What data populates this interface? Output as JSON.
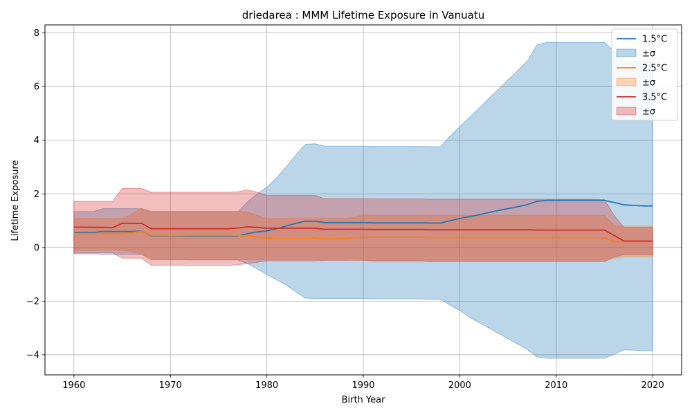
{
  "chart_data": {
    "type": "line",
    "title": "driedarea : MMM Lifetime Exposure in Vanuatu",
    "xlabel": "Birth Year",
    "ylabel": "Lifetime Exposure",
    "xlim": [
      1957,
      2023
    ],
    "ylim": [
      -4.75,
      8.3
    ],
    "xticks": [
      1960,
      1970,
      1980,
      1990,
      2000,
      2010,
      2020
    ],
    "yticks": [
      -4,
      -2,
      0,
      2,
      4,
      6,
      8
    ],
    "grid": true,
    "legend_position": "top-right",
    "x": [
      1960,
      1961,
      1962,
      1963,
      1964,
      1965,
      1966,
      1967,
      1968,
      1969,
      1970,
      1971,
      1972,
      1973,
      1974,
      1975,
      1976,
      1977,
      1978,
      1979,
      1980,
      1981,
      1982,
      1983,
      1984,
      1985,
      1986,
      1987,
      1988,
      1989,
      1990,
      1991,
      1992,
      1993,
      1994,
      1995,
      1996,
      1997,
      1998,
      1999,
      2000,
      2001,
      2002,
      2003,
      2004,
      2005,
      2006,
      2007,
      2008,
      2009,
      2010,
      2011,
      2012,
      2013,
      2014,
      2015,
      2016,
      2017,
      2018,
      2019,
      2020
    ],
    "series": [
      {
        "name": "1.5°C",
        "band_label": "±σ",
        "color": "#1f77b4",
        "band_color": "#1f77b4",
        "mean": [
          0.55,
          0.56,
          0.56,
          0.6,
          0.6,
          0.6,
          0.6,
          0.61,
          0.44,
          0.44,
          0.44,
          0.44,
          0.43,
          0.43,
          0.43,
          0.43,
          0.43,
          0.43,
          0.52,
          0.58,
          0.62,
          0.7,
          0.8,
          0.9,
          0.98,
          0.98,
          0.93,
          0.93,
          0.93,
          0.93,
          0.93,
          0.92,
          0.92,
          0.92,
          0.92,
          0.92,
          0.92,
          0.91,
          0.91,
          1.0,
          1.08,
          1.15,
          1.22,
          1.3,
          1.38,
          1.45,
          1.52,
          1.6,
          1.72,
          1.76,
          1.76,
          1.76,
          1.76,
          1.76,
          1.76,
          1.76,
          1.68,
          1.59,
          1.57,
          1.55,
          1.55
        ],
        "upper": [
          1.34,
          1.34,
          1.34,
          1.45,
          1.45,
          1.45,
          1.45,
          1.45,
          1.33,
          1.33,
          1.33,
          1.33,
          1.33,
          1.33,
          1.33,
          1.33,
          1.33,
          1.33,
          1.7,
          2.0,
          2.25,
          2.6,
          3.0,
          3.45,
          3.85,
          3.87,
          3.78,
          3.78,
          3.78,
          3.78,
          3.78,
          3.77,
          3.77,
          3.77,
          3.77,
          3.77,
          3.77,
          3.76,
          3.76,
          4.15,
          4.5,
          4.85,
          5.2,
          5.55,
          5.9,
          6.25,
          6.6,
          6.95,
          7.55,
          7.65,
          7.65,
          7.65,
          7.65,
          7.65,
          7.65,
          7.65,
          7.32,
          6.95,
          6.95,
          6.95,
          6.95
        ],
        "lower": [
          -0.24,
          -0.24,
          -0.24,
          -0.25,
          -0.25,
          -0.25,
          -0.25,
          -0.25,
          -0.45,
          -0.45,
          -0.45,
          -0.45,
          -0.46,
          -0.46,
          -0.46,
          -0.46,
          -0.46,
          -0.46,
          -0.6,
          -0.8,
          -1.01,
          -1.2,
          -1.4,
          -1.65,
          -1.89,
          -1.9,
          -1.9,
          -1.9,
          -1.9,
          -1.9,
          -1.9,
          -1.92,
          -1.92,
          -1.92,
          -1.92,
          -1.92,
          -1.92,
          -1.93,
          -1.94,
          -2.15,
          -2.35,
          -2.6,
          -2.8,
          -3.0,
          -3.2,
          -3.4,
          -3.6,
          -3.8,
          -4.08,
          -4.13,
          -4.13,
          -4.13,
          -4.13,
          -4.13,
          -4.13,
          -4.13,
          -3.98,
          -3.82,
          -3.83,
          -3.85,
          -3.85
        ]
      },
      {
        "name": "2.5°C",
        "band_label": "±σ",
        "color": "#ff7f0e",
        "band_color": "#ff7f0e",
        "mean": [
          0.52,
          0.52,
          0.52,
          0.52,
          0.52,
          0.52,
          0.55,
          0.6,
          0.45,
          0.45,
          0.45,
          0.45,
          0.45,
          0.45,
          0.45,
          0.45,
          0.45,
          0.45,
          0.42,
          0.38,
          0.35,
          0.35,
          0.35,
          0.35,
          0.35,
          0.35,
          0.32,
          0.32,
          0.33,
          0.36,
          0.38,
          0.38,
          0.38,
          0.38,
          0.38,
          0.38,
          0.38,
          0.37,
          0.37,
          0.37,
          0.37,
          0.37,
          0.37,
          0.37,
          0.37,
          0.37,
          0.37,
          0.37,
          0.37,
          0.37,
          0.37,
          0.37,
          0.37,
          0.37,
          0.37,
          0.37,
          0.22,
          0.22,
          0.22,
          0.22,
          0.22
        ],
        "upper": [
          1.08,
          1.08,
          1.08,
          1.08,
          1.08,
          1.08,
          1.25,
          1.46,
          1.35,
          1.35,
          1.35,
          1.35,
          1.35,
          1.35,
          1.35,
          1.35,
          1.35,
          1.35,
          1.33,
          1.2,
          1.08,
          1.08,
          1.08,
          1.08,
          1.08,
          1.08,
          1.08,
          1.08,
          1.08,
          1.12,
          1.22,
          1.2,
          1.2,
          1.2,
          1.2,
          1.2,
          1.2,
          1.2,
          1.2,
          1.2,
          1.2,
          1.2,
          1.2,
          1.2,
          1.2,
          1.2,
          1.2,
          1.2,
          1.2,
          1.2,
          1.2,
          1.2,
          1.2,
          1.2,
          1.2,
          1.2,
          0.8,
          0.8,
          0.8,
          0.8,
          0.8
        ],
        "lower": [
          -0.1,
          -0.1,
          -0.1,
          -0.1,
          -0.1,
          -0.1,
          -0.15,
          -0.25,
          -0.45,
          -0.45,
          -0.45,
          -0.45,
          -0.45,
          -0.45,
          -0.45,
          -0.45,
          -0.45,
          -0.45,
          -0.45,
          -0.45,
          -0.45,
          -0.45,
          -0.45,
          -0.45,
          -0.45,
          -0.45,
          -0.45,
          -0.45,
          -0.45,
          -0.4,
          -0.45,
          -0.5,
          -0.5,
          -0.5,
          -0.5,
          -0.5,
          -0.5,
          -0.52,
          -0.52,
          -0.52,
          -0.52,
          -0.52,
          -0.52,
          -0.52,
          -0.52,
          -0.52,
          -0.52,
          -0.52,
          -0.52,
          -0.52,
          -0.52,
          -0.52,
          -0.52,
          -0.52,
          -0.52,
          -0.52,
          -0.4,
          -0.35,
          -0.35,
          -0.35,
          -0.35
        ]
      },
      {
        "name": "3.5°C",
        "band_label": "±σ",
        "color": "#d62728",
        "band_color": "#d62728",
        "mean": [
          0.76,
          0.76,
          0.75,
          0.75,
          0.74,
          0.9,
          0.9,
          0.9,
          0.7,
          0.7,
          0.7,
          0.7,
          0.7,
          0.7,
          0.7,
          0.7,
          0.7,
          0.73,
          0.77,
          0.75,
          0.72,
          0.72,
          0.72,
          0.72,
          0.72,
          0.72,
          0.68,
          0.68,
          0.68,
          0.68,
          0.68,
          0.67,
          0.67,
          0.67,
          0.67,
          0.67,
          0.67,
          0.66,
          0.66,
          0.66,
          0.66,
          0.66,
          0.66,
          0.66,
          0.66,
          0.66,
          0.66,
          0.66,
          0.65,
          0.65,
          0.65,
          0.65,
          0.65,
          0.65,
          0.65,
          0.65,
          0.45,
          0.24,
          0.24,
          0.24,
          0.24
        ],
        "upper": [
          1.72,
          1.72,
          1.72,
          1.72,
          1.72,
          2.2,
          2.2,
          2.2,
          2.06,
          2.06,
          2.06,
          2.06,
          2.06,
          2.06,
          2.06,
          2.06,
          2.06,
          2.08,
          2.15,
          2.06,
          1.94,
          1.94,
          1.94,
          1.94,
          1.94,
          1.94,
          1.82,
          1.82,
          1.82,
          1.82,
          1.82,
          1.81,
          1.81,
          1.81,
          1.81,
          1.81,
          1.81,
          1.8,
          1.8,
          1.8,
          1.8,
          1.8,
          1.8,
          1.8,
          1.8,
          1.8,
          1.8,
          1.8,
          1.8,
          1.8,
          1.8,
          1.8,
          1.8,
          1.8,
          1.8,
          1.78,
          1.2,
          0.75,
          0.75,
          0.75,
          0.75
        ],
        "lower": [
          -0.2,
          -0.2,
          -0.2,
          -0.2,
          -0.2,
          -0.4,
          -0.4,
          -0.4,
          -0.66,
          -0.66,
          -0.66,
          -0.66,
          -0.67,
          -0.67,
          -0.67,
          -0.67,
          -0.67,
          -0.64,
          -0.6,
          -0.55,
          -0.5,
          -0.5,
          -0.5,
          -0.5,
          -0.5,
          -0.5,
          -0.48,
          -0.48,
          -0.48,
          -0.48,
          -0.48,
          -0.5,
          -0.5,
          -0.5,
          -0.5,
          -0.5,
          -0.5,
          -0.52,
          -0.52,
          -0.52,
          -0.52,
          -0.52,
          -0.52,
          -0.52,
          -0.52,
          -0.52,
          -0.52,
          -0.52,
          -0.52,
          -0.52,
          -0.52,
          -0.52,
          -0.52,
          -0.52,
          -0.52,
          -0.52,
          -0.35,
          -0.27,
          -0.27,
          -0.27,
          -0.27
        ]
      }
    ]
  }
}
